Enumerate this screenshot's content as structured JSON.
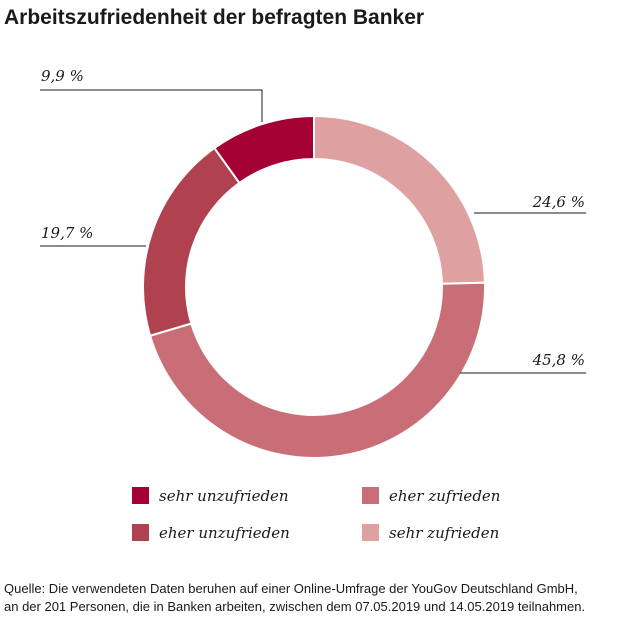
{
  "chart_data": {
    "type": "pie",
    "title": "Arbeitszufriedenheit der befragten Banker",
    "categories": [
      "sehr unzufrieden",
      "eher unzufrieden",
      "eher zufrieden",
      "sehr zufrieden"
    ],
    "values": [
      9.9,
      19.7,
      45.8,
      24.6
    ],
    "value_labels": [
      "9,9 %",
      "19,7 %",
      "45,8 %",
      "24,6 %"
    ],
    "donut": true,
    "colors": {
      "sehr unzufrieden": "#a50034",
      "eher unzufrieden": "#b0424f",
      "eher zufrieden": "#c96e76",
      "sehr zufrieden": "#dfa0a2"
    },
    "legend": {
      "placement": "bottom",
      "items": [
        {
          "label": "sehr unzufrieden",
          "color": "#a50034"
        },
        {
          "label": "eher zufrieden",
          "color": "#c96e76"
        },
        {
          "label": "eher unzufrieden",
          "color": "#b0424f"
        },
        {
          "label": "sehr zufrieden",
          "color": "#dfa0a2"
        }
      ]
    }
  },
  "source_lines": [
    "Quelle: Die verwendeten Daten beruhen auf einer Online-Umfrage der YouGov Deutschland GmbH,",
    "an der 201 Personen, die in Banken arbeiten, zwischen dem 07.05.2019 und 14.05.2019 teilnahmen."
  ]
}
